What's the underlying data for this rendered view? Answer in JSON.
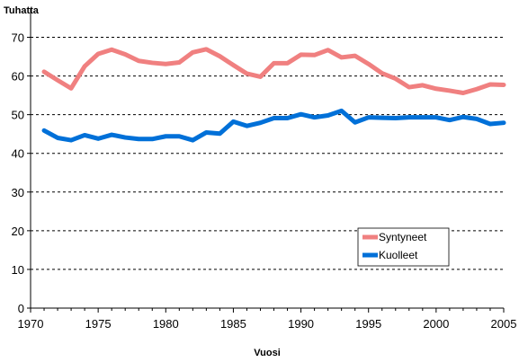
{
  "chart_data": {
    "type": "line",
    "title": "",
    "ylabel": "Tuhatta",
    "xlabel": "Vuosi",
    "xlim": [
      1970,
      2005
    ],
    "ylim": [
      0,
      70
    ],
    "xticks": [
      1970,
      1975,
      1980,
      1985,
      1990,
      1995,
      2000,
      2005
    ],
    "yticks": [
      0,
      10,
      20,
      30,
      40,
      50,
      60,
      70
    ],
    "grid": "horizontal-dashed",
    "legend_position": "lower-right",
    "x": [
      1971,
      1972,
      1973,
      1974,
      1975,
      1976,
      1977,
      1978,
      1979,
      1980,
      1981,
      1982,
      1983,
      1984,
      1985,
      1986,
      1987,
      1988,
      1989,
      1990,
      1991,
      1992,
      1993,
      1994,
      1995,
      1996,
      1997,
      1998,
      1999,
      2000,
      2001,
      2002,
      2003,
      2004,
      2005
    ],
    "series": [
      {
        "name": "Syntyneet",
        "color": "#f08080",
        "values": [
          61.1,
          58.9,
          56.8,
          62.5,
          65.7,
          66.8,
          65.6,
          63.9,
          63.4,
          63.1,
          63.5,
          66.1,
          66.9,
          65.1,
          62.8,
          60.6,
          59.8,
          63.3,
          63.3,
          65.5,
          65.4,
          66.7,
          64.8,
          65.2,
          63.1,
          60.7,
          59.3,
          57.1,
          57.6,
          56.7,
          56.2,
          55.6,
          56.6,
          57.8,
          57.7
        ]
      },
      {
        "name": "Kuolleet",
        "color": "#0070d8",
        "values": [
          45.9,
          44.0,
          43.4,
          44.7,
          43.8,
          44.8,
          44.1,
          43.7,
          43.7,
          44.4,
          44.4,
          43.4,
          45.4,
          45.1,
          48.2,
          47.1,
          47.9,
          49.1,
          49.1,
          50.1,
          49.3,
          49.8,
          51.0,
          48.0,
          49.3,
          49.2,
          49.1,
          49.3,
          49.3,
          49.3,
          48.6,
          49.4,
          48.9,
          47.6,
          47.9
        ]
      }
    ]
  }
}
